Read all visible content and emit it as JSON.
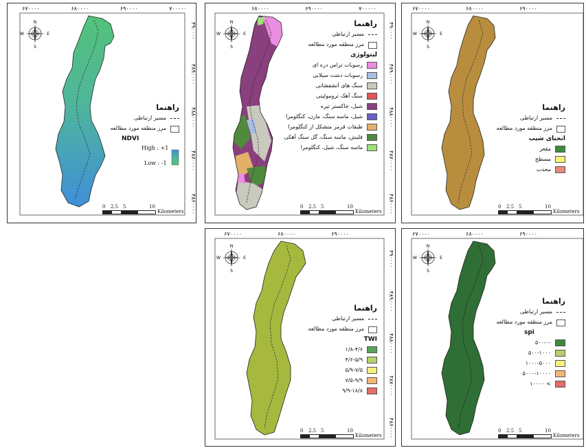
{
  "panels": {
    "ndvi": {
      "legend_title": "راهنما",
      "road": "مسیر ارتباطی",
      "boundary": "مرز منطقه مورد مطالعه",
      "index_title": "NDVI",
      "high": "High : +1",
      "low": "Low : -1",
      "x_ticks": [
        "۶۷۰۰۰۰",
        "۶۸۰۰۰۰",
        "۶۹۰۰۰۰",
        "۷۰۰۰۰۰"
      ],
      "y_ticks": [
        "۴۹۰۰۰۰",
        "۴۸۹۰۰۰۰",
        "۴۸۸۰۰۰۰",
        "۴۸۷۰۰۰۰",
        "۴۸۶۰۰۰۰"
      ],
      "colors": {
        "high": "#3f8fd8",
        "low": "#52c27a"
      }
    },
    "lithology": {
      "legend_title": "راهنما",
      "road": "مسیر ارتباطی",
      "boundary": "مرز منطقه مورد مطالعه",
      "subtitle": "لیتولوژی",
      "classes": [
        {
          "label": "رسوبات تراس دره ای",
          "color": "#e98ee0"
        },
        {
          "label": "رسوبات دشت سیلابی",
          "color": "#a9bde3"
        },
        {
          "label": "سنگ های آتشفشانی",
          "color": "#c9cabd"
        },
        {
          "label": "سنگ آهک ترومولیتی",
          "color": "#e0565b"
        },
        {
          "label": "شیل، خاکستر تیره",
          "color": "#8a3f7e"
        },
        {
          "label": "شیل، ماسه سنگ، مارن، کنگلومرا",
          "color": "#6a5fc8"
        },
        {
          "label": "طبقات قرمز متشکل از کنگلومرا",
          "color": "#e3b06a"
        },
        {
          "label": "فلیش، ماسه سنگ، گل سنگ آهکی",
          "color": "#4f8a3d"
        },
        {
          "label": "ماسه سنگ، شیل، کنگلومرا",
          "color": "#9de07a"
        }
      ],
      "x_ticks": [
        "۶۸۰۰۰۰",
        "۶۹۰۰۰۰",
        "۷۰۰۰۰۰"
      ],
      "y_ticks": [
        "۴۹۰۰۰۰",
        "۴۸۹۰۰۰۰",
        "۴۸۸۰۰۰۰",
        "۴۸۷۰۰۰۰",
        "۴۸۶۰۰۰۰"
      ]
    },
    "curvature": {
      "legend_title": "راهنما",
      "road": "مسیر ارتباطی",
      "boundary": "مرز منطقه مورد مطالعه",
      "subtitle": "انحنای شیب",
      "classes": [
        {
          "label": "مقعر",
          "color": "#3f8a3a"
        },
        {
          "label": "مسطح",
          "color": "#f6f27a"
        },
        {
          "label": "محدب",
          "color": "#e98a7a"
        }
      ],
      "x_ticks": [
        "۶۷۰۰۰۰",
        "۶۸۰۰۰۰",
        "۶۹۰۰۰۰"
      ],
      "fill": "#b88e3e"
    },
    "twi": {
      "legend_title": "راهنما",
      "road": "مسیر ارتباطی",
      "boundary": "مرز منطقه مورد مطالعه",
      "index_title": "TWI",
      "classes": [
        {
          "label": "۱/۸-۴/۶",
          "color": "#57a35a"
        },
        {
          "label": "۴/۶-۵/۹",
          "color": "#b6d06c"
        },
        {
          "label": "۵/۹-۷/۵",
          "color": "#f7f27f"
        },
        {
          "label": "۷/۵-۹/۹",
          "color": "#f3b779"
        },
        {
          "label": "۹/۹-۱۸/۸",
          "color": "#e36d6a"
        }
      ],
      "x_ticks": [
        "۶۷۰۰۰۰",
        "۶۸۰۰۰۰",
        "۶۹۰۰۰۰"
      ],
      "y_ticks": [
        "۴۹۰۰۰۰",
        "۴۸۹۰۰۰۰",
        "۴۸۸۰۰۰۰",
        "۴۸۷۰۰۰۰",
        "۴۸۶۰۰۰۰"
      ],
      "fill": "#a6b83e"
    },
    "spi": {
      "legend_title": "راهنما",
      "road": "مسیر ارتباطی",
      "boundary": "مرز منطقه مورد مطالعه",
      "index_title": "spi",
      "classes": [
        {
          "label": "-۵۰۰-۰",
          "color": "#3f8a3a"
        },
        {
          "label": "۵۰۰-۱۰۰۰",
          "color": "#b6d06c"
        },
        {
          "label": "۱۰۰۰-۵۰۰۰",
          "color": "#f7f27f"
        },
        {
          "label": "۵۰۰۰-۱۰۰۰۰",
          "color": "#f3b779"
        },
        {
          "label": "> ۱۰۰۰۰",
          "color": "#e36d6a"
        }
      ],
      "x_ticks": [
        "۶۷۰۰۰۰",
        "۶۸۰۰۰۰",
        "۶۹۰۰۰۰"
      ],
      "fill": "#2f6e35"
    }
  },
  "scale": {
    "labels": [
      "0",
      "2.5",
      "5",
      "10"
    ],
    "unit": "Kilometers"
  },
  "compass": {
    "n": "N",
    "s": "S",
    "e": "E",
    "w": "W"
  }
}
